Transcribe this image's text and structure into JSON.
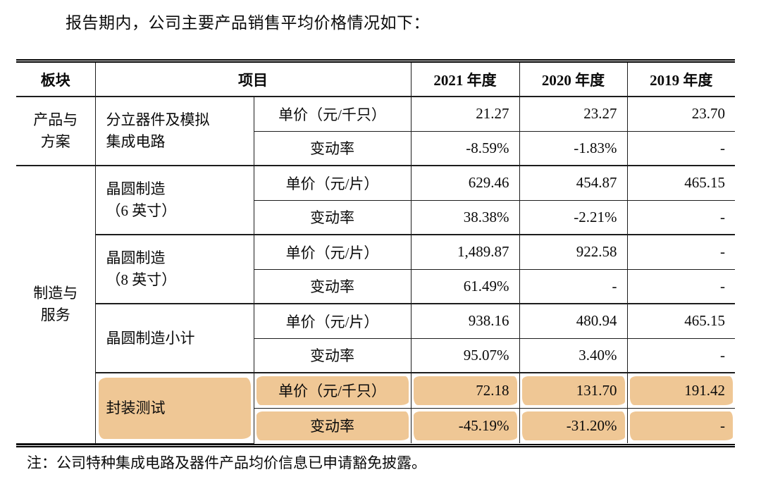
{
  "title": "报告期内，公司主要产品销售平均价格情况如下：",
  "note": "注：公司特种集成电路及器件产品均价信息已申请豁免披露。",
  "colors": {
    "highlight": "#efc795",
    "border": "#1d1d1d",
    "text": "#0a0a0a"
  },
  "table": {
    "headers": {
      "sector": "板块",
      "item": "项目",
      "years": [
        "2021 年度",
        "2020 年度",
        "2019 年度"
      ]
    },
    "groups": [
      {
        "sector": "产品与\n方案",
        "products": [
          {
            "name": "分立器件及模拟\n集成电路",
            "rows": [
              {
                "metric": "单价（元/千只）",
                "values": [
                  "21.27",
                  "23.27",
                  "23.70"
                ]
              },
              {
                "metric": "变动率",
                "values": [
                  "-8.59%",
                  "-1.83%",
                  "-"
                ]
              }
            ]
          }
        ]
      },
      {
        "sector": "制造与\n服务",
        "products": [
          {
            "name": "晶圆制造\n（6 英寸）",
            "rows": [
              {
                "metric": "单价（元/片）",
                "values": [
                  "629.46",
                  "454.87",
                  "465.15"
                ]
              },
              {
                "metric": "变动率",
                "values": [
                  "38.38%",
                  "-2.21%",
                  "-"
                ]
              }
            ]
          },
          {
            "name": "晶圆制造\n（8 英寸）",
            "rows": [
              {
                "metric": "单价（元/片）",
                "values": [
                  "1,489.87",
                  "922.58",
                  "-"
                ]
              },
              {
                "metric": "变动率",
                "values": [
                  "61.49%",
                  "-",
                  "-"
                ]
              }
            ]
          },
          {
            "name": "晶圆制造小计",
            "rows": [
              {
                "metric": "单价（元/片）",
                "values": [
                  "938.16",
                  "480.94",
                  "465.15"
                ]
              },
              {
                "metric": "变动率",
                "values": [
                  "95.07%",
                  "3.40%",
                  "-"
                ]
              }
            ]
          },
          {
            "name": "封装测试",
            "highlighted": true,
            "rows": [
              {
                "metric": "单价（元/千只）",
                "values": [
                  "72.18",
                  "131.70",
                  "191.42"
                ]
              },
              {
                "metric": "变动率",
                "values": [
                  "-45.19%",
                  "-31.20%",
                  "-"
                ]
              }
            ]
          }
        ]
      }
    ]
  }
}
